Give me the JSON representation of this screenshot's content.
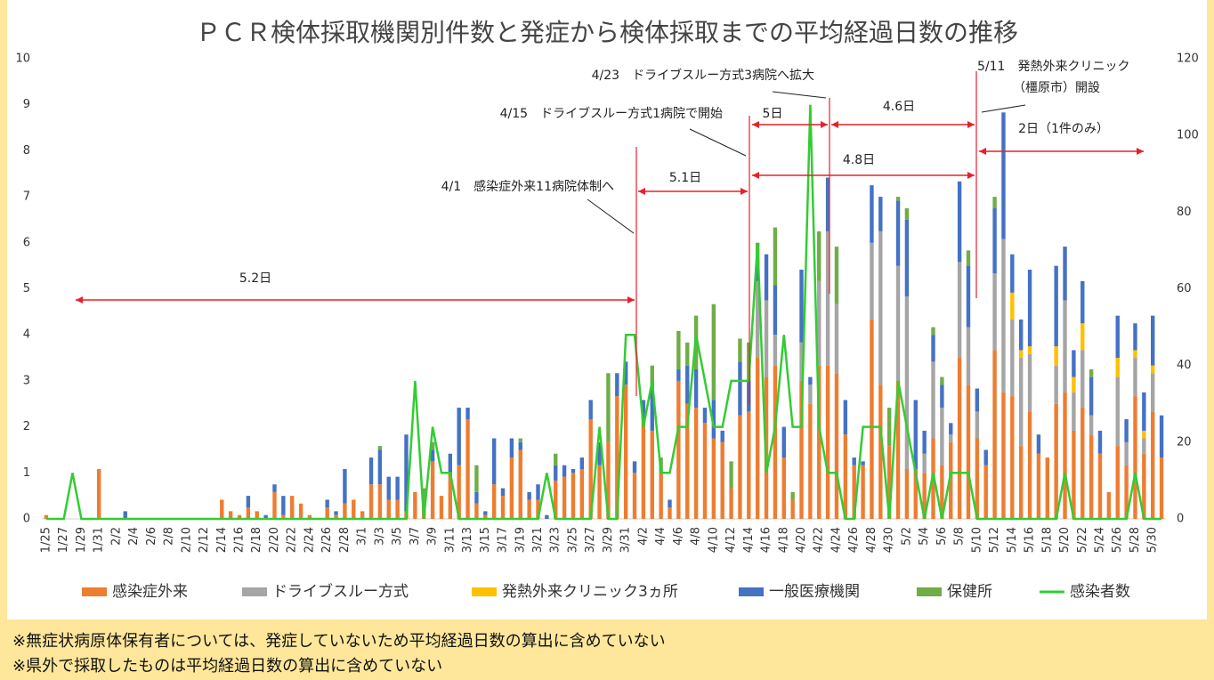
{
  "chart_data": {
    "type": "bar",
    "title": "ＰＣＲ検体採取機関別件数と発症から検体採取までの平均経過日数の推移",
    "categories": [
      "1/25",
      null,
      "1/27",
      null,
      "1/29",
      null,
      "1/31",
      null,
      "2/2",
      null,
      "2/4",
      null,
      "2/6",
      null,
      "2/8",
      null,
      "2/10",
      null,
      "2/12",
      null,
      "2/14",
      null,
      "2/16",
      null,
      "2/18",
      null,
      "2/20",
      null,
      "2/22",
      null,
      "2/24",
      null,
      "2/26",
      null,
      "2/28",
      null,
      "3/1",
      null,
      "3/3",
      null,
      "3/5",
      null,
      "3/7",
      null,
      "3/9",
      null,
      "3/11",
      null,
      "3/13",
      null,
      "3/15",
      null,
      "3/17",
      null,
      "3/19",
      null,
      "3/21",
      null,
      "3/23",
      null,
      "3/25",
      null,
      "3/27",
      null,
      "3/29",
      null,
      "3/31",
      null,
      "4/2",
      null,
      "4/4",
      null,
      "4/6",
      null,
      "4/8",
      null,
      "4/10",
      null,
      "4/12",
      null,
      "4/14",
      null,
      "4/16",
      null,
      "4/18",
      null,
      "4/20",
      null,
      "4/22",
      null,
      "4/24",
      null,
      "4/26",
      null,
      "4/28",
      null,
      "4/30",
      null,
      "5/2",
      null,
      "5/4",
      null,
      "5/6",
      null,
      "5/8",
      null,
      "5/10",
      null,
      "5/12",
      null,
      "5/14",
      null,
      "5/16",
      null,
      "5/18",
      null,
      "5/20",
      null,
      "5/22",
      null,
      "5/24",
      null,
      "5/26",
      null,
      "5/28",
      null,
      "5/30",
      null
    ],
    "series": [
      {
        "name": "感染症外来",
        "color": "#ed7d31",
        "axis": "y2",
        "values": [
          1,
          0,
          0,
          0,
          0,
          0,
          13,
          0,
          0,
          0,
          0,
          0,
          0,
          0,
          0,
          0,
          0,
          0,
          0,
          0,
          5,
          2,
          1,
          3,
          2,
          0,
          7,
          1,
          6,
          4,
          1,
          0,
          3,
          1,
          4,
          5,
          2,
          9,
          9,
          5,
          5,
          2,
          7,
          4,
          15,
          6,
          12,
          14,
          26,
          4,
          1,
          9,
          6,
          16,
          18,
          5,
          5,
          0,
          10,
          11,
          12,
          13,
          26,
          14,
          20,
          32,
          35,
          12,
          26,
          23,
          12,
          3,
          36,
          30,
          29,
          25,
          21,
          20,
          8,
          27,
          28,
          42,
          37,
          40,
          16,
          5,
          36,
          30,
          40,
          40,
          38,
          22,
          14,
          14,
          52,
          35,
          19,
          36,
          13,
          13,
          12,
          21,
          14,
          20,
          42,
          35,
          21,
          14,
          44,
          33,
          32,
          19,
          28,
          17,
          16,
          30,
          33,
          23,
          29,
          22,
          17,
          7,
          19,
          14,
          32,
          17,
          28,
          16
        ]
      },
      {
        "name": "ドライブスルー方式",
        "color": "#a5a5a5",
        "axis": "y2",
        "values": [
          0,
          0,
          0,
          0,
          0,
          0,
          0,
          0,
          0,
          0,
          0,
          0,
          0,
          0,
          0,
          0,
          0,
          0,
          0,
          0,
          0,
          0,
          0,
          0,
          0,
          0,
          0,
          0,
          0,
          0,
          0,
          0,
          0,
          0,
          0,
          0,
          0,
          0,
          0,
          0,
          0,
          0,
          0,
          0,
          0,
          0,
          0,
          0,
          0,
          0,
          0,
          0,
          0,
          0,
          0,
          0,
          0,
          0,
          0,
          0,
          0,
          0,
          0,
          0,
          0,
          0,
          0,
          0,
          0,
          0,
          0,
          0,
          0,
          0,
          0,
          0,
          0,
          0,
          0,
          0,
          0,
          20,
          20,
          8,
          0,
          0,
          10,
          5,
          22,
          35,
          18,
          0,
          0,
          0,
          20,
          40,
          0,
          30,
          45,
          0,
          5,
          20,
          15,
          2,
          25,
          15,
          7,
          0,
          20,
          40,
          20,
          23,
          15,
          0,
          0,
          10,
          24,
          10,
          15,
          5,
          0,
          0,
          18,
          6,
          10,
          4,
          10,
          0
        ]
      },
      {
        "name": "発熱外来クリニック3ヵ所",
        "color": "#ffc000",
        "axis": "y2",
        "values": [
          0,
          0,
          0,
          0,
          0,
          0,
          0,
          0,
          0,
          0,
          0,
          0,
          0,
          0,
          0,
          0,
          0,
          0,
          0,
          0,
          0,
          0,
          0,
          0,
          0,
          0,
          0,
          0,
          0,
          0,
          0,
          0,
          0,
          0,
          0,
          0,
          0,
          0,
          0,
          0,
          0,
          0,
          0,
          0,
          0,
          0,
          0,
          0,
          0,
          0,
          0,
          0,
          0,
          0,
          0,
          0,
          0,
          0,
          0,
          0,
          0,
          0,
          0,
          0,
          0,
          0,
          0,
          0,
          0,
          0,
          0,
          0,
          0,
          0,
          0,
          0,
          0,
          0,
          0,
          0,
          0,
          0,
          0,
          0,
          0,
          0,
          0,
          0,
          0,
          0,
          0,
          0,
          0,
          0,
          0,
          0,
          0,
          0,
          0,
          0,
          0,
          0,
          0,
          0,
          0,
          0,
          0,
          0,
          0,
          0,
          7,
          2,
          2,
          0,
          0,
          5,
          0,
          4,
          7,
          0,
          0,
          0,
          5,
          0,
          2,
          2,
          2,
          0
        ]
      },
      {
        "name": "一般医療機関",
        "color": "#4472c4",
        "axis": "y2",
        "values": [
          0,
          0,
          0,
          0,
          0,
          0,
          0,
          0,
          0,
          2,
          0,
          0,
          0,
          0,
          0,
          0,
          0,
          0,
          0,
          0,
          0,
          0,
          0,
          3,
          0,
          1,
          2,
          5,
          0,
          0,
          0,
          0,
          2,
          1,
          9,
          0,
          0,
          7,
          9,
          6,
          6,
          20,
          0,
          0,
          3,
          0,
          5,
          15,
          3,
          3,
          1,
          12,
          2,
          5,
          2,
          2,
          4,
          1,
          4,
          3,
          1,
          3,
          5,
          6,
          0,
          6,
          6,
          3,
          5,
          11,
          0,
          2,
          3,
          10,
          10,
          4,
          10,
          3,
          0,
          14,
          8,
          5,
          12,
          13,
          8,
          0,
          19,
          2,
          0,
          14,
          0,
          9,
          2,
          1,
          15,
          9,
          0,
          17,
          20,
          18,
          6,
          7,
          6,
          3,
          21,
          16,
          6,
          4,
          17,
          33,
          10,
          8,
          20,
          5,
          0,
          21,
          14,
          7,
          11,
          10,
          6,
          0,
          11,
          6,
          7,
          10,
          13,
          11
        ]
      },
      {
        "name": "保健所",
        "color": "#70ad47",
        "axis": "y2",
        "values": [
          0,
          0,
          0,
          0,
          0,
          0,
          0,
          0,
          0,
          0,
          0,
          0,
          0,
          0,
          0,
          0,
          0,
          0,
          0,
          0,
          0,
          0,
          0,
          0,
          0,
          0,
          0,
          0,
          0,
          0,
          0,
          0,
          0,
          0,
          0,
          0,
          0,
          0,
          1,
          0,
          0,
          0,
          0,
          4,
          2,
          0,
          0,
          0,
          0,
          7,
          0,
          0,
          0,
          0,
          1,
          0,
          0,
          0,
          3,
          0,
          0,
          0,
          0,
          0,
          18,
          0,
          0,
          0,
          0,
          6,
          4,
          0,
          10,
          6,
          14,
          0,
          25,
          0,
          7,
          6,
          10,
          5,
          0,
          15,
          0,
          2,
          0,
          0,
          13,
          0,
          15,
          0,
          0,
          0,
          0,
          0,
          10,
          1,
          3,
          0,
          0,
          2,
          2,
          0,
          0,
          4,
          0,
          0,
          3,
          0,
          0,
          0,
          0,
          0,
          0,
          0,
          0,
          0,
          0,
          2,
          0,
          0,
          0,
          0,
          0,
          0,
          0,
          0
        ]
      },
      {
        "name": "感染者数",
        "color": "#33cc33",
        "type": "line",
        "values": [
          0,
          0,
          0,
          1,
          0,
          0,
          0,
          0,
          0,
          0,
          0,
          0,
          0,
          0,
          0,
          0,
          0,
          0,
          0,
          0,
          0,
          0,
          0,
          0,
          0,
          0,
          0,
          0,
          0,
          0,
          0,
          0,
          0,
          0,
          0,
          0,
          0,
          0,
          0,
          0,
          0,
          0,
          3,
          0,
          2,
          1,
          1,
          0,
          0,
          0,
          0,
          0,
          0,
          0,
          0,
          0,
          0,
          1,
          0,
          0,
          0,
          0,
          0,
          2,
          0,
          0,
          4,
          4,
          2,
          3,
          1,
          1,
          2,
          2,
          4,
          3,
          2,
          2,
          3,
          3,
          3,
          6,
          1,
          2,
          4,
          2,
          2,
          9,
          2,
          1,
          1,
          0,
          0,
          2,
          2,
          2,
          0,
          3,
          2,
          1,
          0,
          1,
          0,
          1,
          1,
          1,
          0,
          0,
          0,
          0,
          0,
          0,
          0,
          0,
          0,
          0,
          1,
          0,
          0,
          0,
          0,
          0,
          0,
          0,
          1,
          0,
          0,
          0
        ]
      }
    ],
    "ylim": [
      0,
      10
    ],
    "yticks": [
      0,
      1,
      2,
      3,
      4,
      5,
      6,
      7,
      8,
      9,
      10
    ],
    "y2lim": [
      0,
      120
    ],
    "y2ticks": [
      0,
      20,
      40,
      60,
      80,
      100,
      120
    ],
    "stacked": true,
    "grid": false,
    "legend": "bottom",
    "events": [
      {
        "lines": [
          "4/1　感染症外来11病院体制へ"
        ]
      },
      {
        "lines": [
          "4/15　ドライブスルー方式1病院で開始"
        ]
      },
      {
        "lines": [
          "4/23　ドライブスルー方式3病院へ拡大"
        ]
      },
      {
        "lines": [
          "5/11　発熱外来クリニック",
          "（橿原市）開設"
        ]
      }
    ],
    "intervals": [
      {
        "label": "5.2日"
      },
      {
        "label": "5.1日"
      },
      {
        "label": "5日"
      },
      {
        "label": "4.8日"
      },
      {
        "label": "4.6日"
      },
      {
        "label": "2日（1件のみ）"
      }
    ],
    "notes": [
      "※無症状病原体保有者については、発症していないため平均経過日数の算出に含めていない",
      "※県外で採取したものは平均経過日数の算出に含めていない"
    ]
  }
}
